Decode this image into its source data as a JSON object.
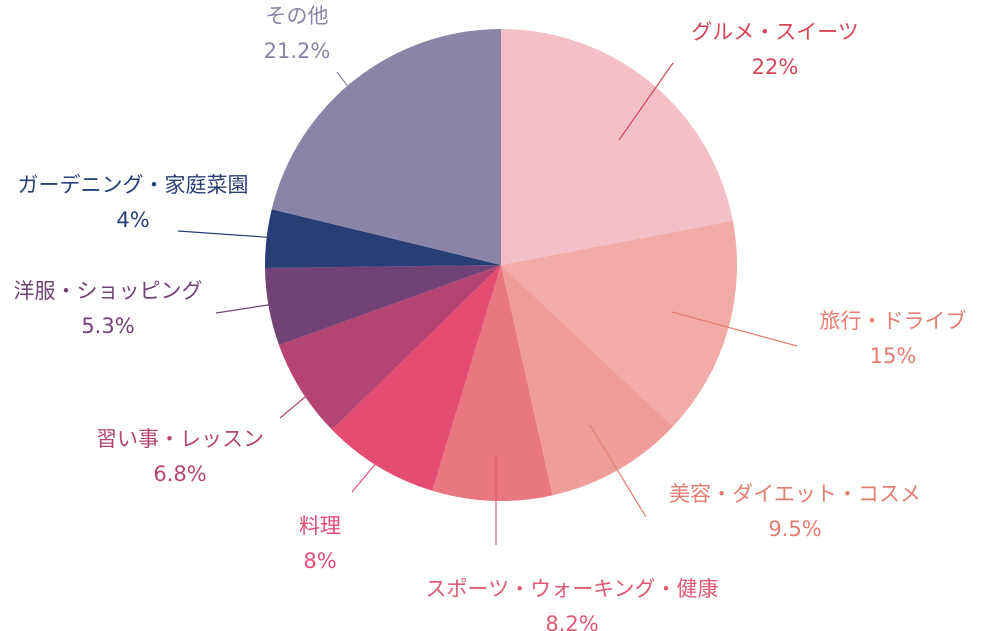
{
  "chart_data": {
    "type": "pie",
    "start_angle_deg": 0,
    "direction": "clockwise",
    "categories": [
      "グルメ・スイーツ",
      "旅行・ドライブ",
      "美容・ダイエット・コスメ",
      "スポーツ・ウォーキング・健康",
      "料理",
      "習い事・レッスン",
      "洋服・ショッピング",
      "ガーデニング・家庭菜園",
      "その他"
    ],
    "values": [
      22,
      15,
      9.5,
      8.2,
      8,
      6.8,
      5.3,
      4,
      21.2
    ],
    "value_labels": [
      "22%",
      "15%",
      "9.5%",
      "8.2%",
      "8%",
      "6.8%",
      "5.3%",
      "4%",
      "21.2%"
    ],
    "labels": [
      "グルメ・スイーツ",
      "旅行・ドライブ",
      "美容・ダイエット・コスメ",
      "スポーツ・ウォーキング・健康",
      "料理",
      "習い事・レッスン",
      "洋服・ショッピング",
      "ガーデニング・家庭菜園",
      "その他"
    ],
    "slice_colors": [
      "#f4bfc7",
      "#f1aca8",
      "#ee9d98",
      "#ea7780",
      "#e54c74",
      "#b44572",
      "#714276",
      "#283f76",
      "#8a84a6"
    ],
    "label_colors": [
      "#d6465a",
      "#e57e72",
      "#e27e72",
      "#e05a73",
      "#e54c74",
      "#b44572",
      "#714276",
      "#283f76",
      "#8a84a6"
    ]
  }
}
